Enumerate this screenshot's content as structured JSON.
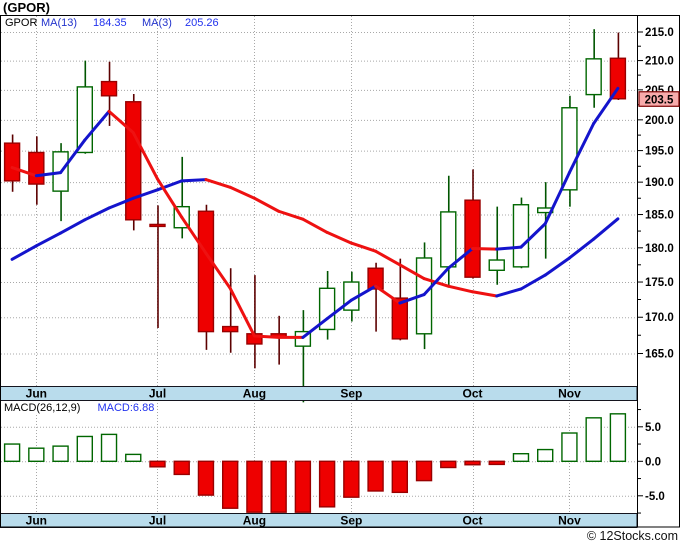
{
  "window": {
    "title": "(GPOR)",
    "copyright": "© 12Stocks.com"
  },
  "legend": {
    "symbol": "GPOR",
    "ma13_label": "MA(13)",
    "ma13_value": "184.35",
    "ma3_label": "MA(3)",
    "ma3_value": "205.26"
  },
  "macd_legend": {
    "title": "MACD(26,12,9)",
    "value": "MACD:6.88"
  },
  "price_tag": "203.5",
  "colors": {
    "up_border": "#006600",
    "up_fill": "#ffffff",
    "up_wick": "#005500",
    "down_fill": "#ee0000",
    "down_border": "#990000",
    "down_wick": "#5c0000",
    "ma_rising": "#1414cc",
    "ma_falling": "#ee1111",
    "grid": "#a8a8a8",
    "frame": "#000000",
    "month_band": "#b9dcec",
    "band_border": "#14141e",
    "tag_bg": "#f7abab",
    "tag_border": "#7a0000",
    "axis_text": "#000000"
  },
  "chart_data": [
    {
      "type": "candlestick",
      "title": "GPOR weekly candlestick with MA(3) and MA(13)",
      "scale": "log",
      "grid": true,
      "legend_position": "top-left",
      "ylim": [
        161,
        218
      ],
      "y_ticks": [
        215.0,
        210.0,
        205.0,
        200.0,
        195.0,
        190.0,
        185.0,
        180.0,
        175.0,
        170.0,
        165.0
      ],
      "last_price": 203.5,
      "months": [
        {
          "label": "Jun",
          "candle_index": 1
        },
        {
          "label": "Jul",
          "candle_index": 6
        },
        {
          "label": "Aug",
          "candle_index": 10
        },
        {
          "label": "Sep",
          "candle_index": 14
        },
        {
          "label": "Oct",
          "candle_index": 19
        },
        {
          "label": "Nov",
          "candle_index": 23
        }
      ],
      "candles_ohlc": [
        [
          196.2,
          197.6,
          188.5,
          190.2
        ],
        [
          194.7,
          197.3,
          186.5,
          189.7
        ],
        [
          188.6,
          196.2,
          184.0,
          194.8
        ],
        [
          194.7,
          210.0,
          194.5,
          205.5
        ],
        [
          206.4,
          209.8,
          199.0,
          204.0
        ],
        [
          203.0,
          204.3,
          182.6,
          184.2
        ],
        [
          183.5,
          186.4,
          168.5,
          183.2
        ],
        [
          183.0,
          194.0,
          181.4,
          186.2
        ],
        [
          185.5,
          186.5,
          165.5,
          168.0
        ],
        [
          168.7,
          177.0,
          165.1,
          168.0
        ],
        [
          167.7,
          176.0,
          163.0,
          166.3
        ],
        [
          167.7,
          170.2,
          163.5,
          167.3
        ],
        [
          166.0,
          171.0,
          158.5,
          168.0
        ],
        [
          168.3,
          176.6,
          166.9,
          174.1
        ],
        [
          171.0,
          176.5,
          169.4,
          175.0
        ],
        [
          177.0,
          177.8,
          168.0,
          174.0
        ],
        [
          172.7,
          178.4,
          166.8,
          167.0
        ],
        [
          167.7,
          180.8,
          165.6,
          178.5
        ],
        [
          177.2,
          191.0,
          174.5,
          185.4
        ],
        [
          187.2,
          192.0,
          175.5,
          175.7
        ],
        [
          176.7,
          186.2,
          174.6,
          178.2
        ],
        [
          177.2,
          187.6,
          177.0,
          186.5
        ],
        [
          185.3,
          190.0,
          178.4,
          186.0
        ],
        [
          188.8,
          204.0,
          186.2,
          202.0
        ],
        [
          204.2,
          215.5,
          202.0,
          210.3
        ],
        [
          210.4,
          214.9,
          203.3,
          203.5
        ]
      ],
      "series": [
        {
          "name": "MA(13)",
          "values": [
            178.3,
            180.3,
            182.2,
            184.2,
            186.0,
            187.5,
            188.8,
            190.2,
            190.4,
            189.2,
            187.5,
            185.5,
            184.3,
            182.3,
            180.7,
            179.5,
            177.5,
            175.5,
            174.4,
            173.6,
            173.0,
            174.0,
            176.0,
            178.5,
            181.3,
            184.35
          ]
        },
        {
          "name": "MA(3)",
          "values": [
            192.3,
            191.0,
            191.5,
            196.7,
            201.4,
            197.9,
            190.5,
            184.6,
            179.2,
            174.1,
            167.4,
            167.2,
            167.2,
            169.8,
            172.4,
            174.4,
            172.0,
            173.2,
            177.0,
            179.9,
            179.8,
            180.1,
            183.6,
            191.5,
            199.4,
            205.26
          ]
        }
      ]
    },
    {
      "type": "bar",
      "title": "MACD(26,12,9) histogram",
      "current": 6.88,
      "ylim": [
        -8.2,
        9.0
      ],
      "y_ticks": [
        5.0,
        0.0,
        -5.0
      ],
      "values": [
        2.5,
        1.9,
        2.2,
        3.6,
        3.9,
        1.0,
        -0.8,
        -1.9,
        -4.9,
        -6.8,
        -8.0,
        -8.0,
        -7.6,
        -6.6,
        -5.2,
        -4.3,
        -4.5,
        -2.8,
        -0.9,
        -0.5,
        -0.45,
        1.1,
        1.7,
        4.1,
        6.3,
        6.88
      ]
    }
  ]
}
